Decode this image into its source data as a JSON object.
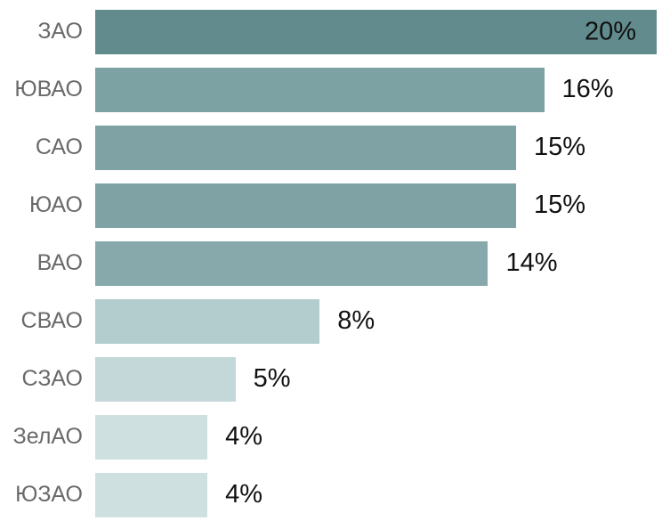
{
  "chart_data": {
    "type": "bar",
    "orientation": "horizontal",
    "title": "",
    "xlabel": "",
    "ylabel": "",
    "grid": false,
    "legend": null,
    "xlim": [
      0,
      20
    ],
    "categories": [
      "ЗАО",
      "ЮВАО",
      "САО",
      "ЮАО",
      "ВАО",
      "СВАО",
      "СЗАО",
      "ЗелАО",
      "ЮЗАО"
    ],
    "values": [
      20,
      16,
      15,
      15,
      14,
      8,
      5,
      4,
      4
    ],
    "value_labels": [
      "20%",
      "16%",
      "15%",
      "15%",
      "14%",
      "8%",
      "5%",
      "4%",
      "4%"
    ],
    "bar_colors": [
      "#618b8c",
      "#7da2a4",
      "#7fa3a5",
      "#7fa3a5",
      "#88a9ab",
      "#b3cccd",
      "#c5d8d9",
      "#cee0e0",
      "#cfe0e0"
    ],
    "category_label_color": "#6a6a6a",
    "value_label_color": "#111111",
    "max_bar_label_inside": true,
    "background_color": "#ffffff"
  }
}
